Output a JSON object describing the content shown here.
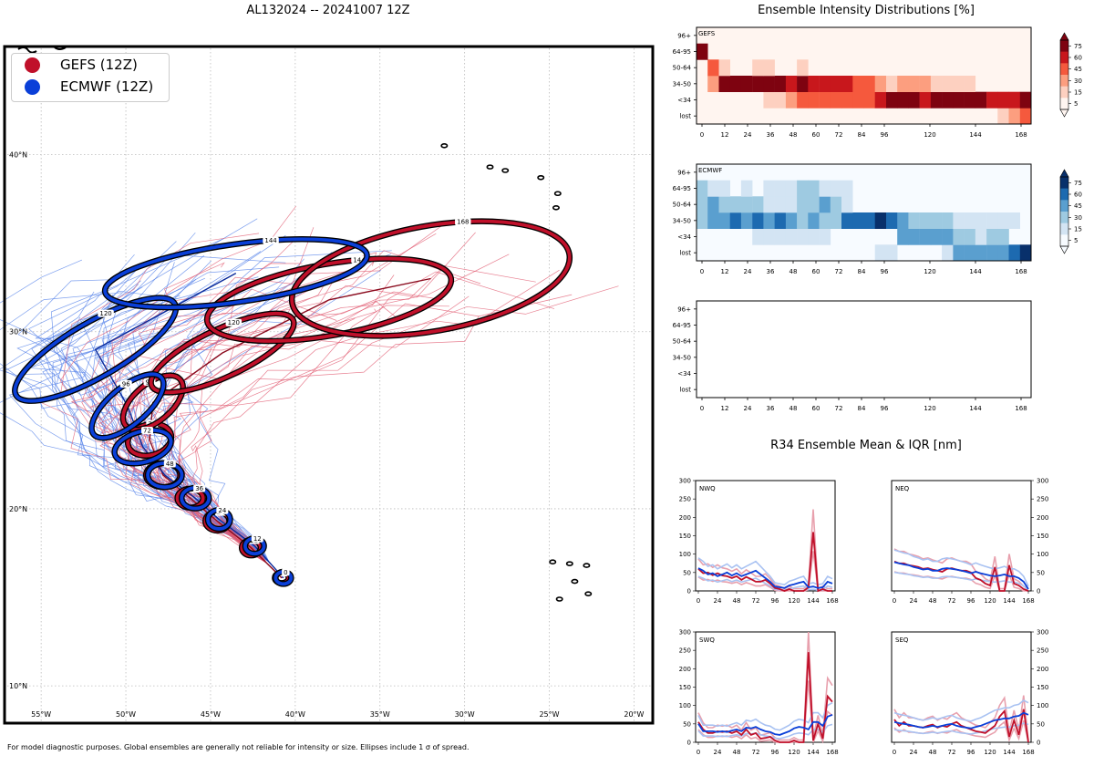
{
  "titles": {
    "map": "AL132024 -- 20241007 12Z",
    "intensity": "Ensemble Intensity Distributions [%]",
    "r34": "R34 Ensemble Mean & IQR [nm]"
  },
  "footnote": "For model diagnostic purposes. Global ensembles are generally not reliable for intensity or size. Ellipses include 1 σ of spread.",
  "colors": {
    "gefs": "#c0102a",
    "ecmwf": "#0a3fd8",
    "gefs_light": "#e8a0ad",
    "ecmwf_light": "#a9c2f2"
  },
  "legend": [
    {
      "label": "GEFS (12Z)",
      "color": "#c0102a"
    },
    {
      "label": "ECMWF (12Z)",
      "color": "#0a3fd8"
    }
  ],
  "chart_data": [
    {
      "type": "map",
      "title": "AL132024 -- 20241007 12Z",
      "lon_range": [
        -57,
        -19
      ],
      "lat_range": [
        8,
        46
      ],
      "lon_ticks": [
        "55°W",
        "50°W",
        "45°W",
        "40°W",
        "35°W",
        "30°W",
        "25°W",
        "20°W"
      ],
      "lat_ticks": [
        "10°N",
        "20°N",
        "30°N",
        "40°N"
      ],
      "gefs_ellipses": [
        {
          "hour": "0",
          "lon": -40.8,
          "lat": 16.1,
          "a": 0.3,
          "b": 0.2,
          "rot": 0
        },
        {
          "hour": "12",
          "lon": -42.6,
          "lat": 17.8,
          "a": 0.45,
          "b": 0.35,
          "rot": 0
        },
        {
          "hour": "24",
          "lon": -44.6,
          "lat": 19.3,
          "a": 0.6,
          "b": 0.45,
          "rot": 0
        },
        {
          "hour": "36",
          "lon": -46.2,
          "lat": 20.6,
          "a": 0.65,
          "b": 0.45,
          "rot": 0
        },
        {
          "hour": "48",
          "lon": -47.8,
          "lat": 21.9,
          "a": 0.9,
          "b": 0.6,
          "rot": 0
        },
        {
          "hour": "72",
          "lon": -48.6,
          "lat": 23.9,
          "a": 1.2,
          "b": 0.8,
          "rot": -15
        },
        {
          "hour": "96",
          "lon": -48.4,
          "lat": 26.0,
          "a": 2.0,
          "b": 1.0,
          "rot": -40
        },
        {
          "hour": "120",
          "lon": -44.3,
          "lat": 28.8,
          "a": 4.5,
          "b": 1.3,
          "rot": -25
        },
        {
          "hour": "144",
          "lon": -38.0,
          "lat": 31.8,
          "a": 7.2,
          "b": 2.0,
          "rot": -10
        },
        {
          "hour": "168",
          "lon": -32.0,
          "lat": 33.0,
          "a": 8.2,
          "b": 3.0,
          "rot": -10
        }
      ],
      "ecmwf_ellipses": [
        {
          "hour": "0",
          "lon": -40.7,
          "lat": 16.1,
          "a": 0.35,
          "b": 0.25,
          "rot": 0
        },
        {
          "hour": "12",
          "lon": -42.4,
          "lat": 17.9,
          "a": 0.45,
          "b": 0.35,
          "rot": 0
        },
        {
          "hour": "24",
          "lon": -44.5,
          "lat": 19.4,
          "a": 0.55,
          "b": 0.45,
          "rot": 0
        },
        {
          "hour": "36",
          "lon": -45.9,
          "lat": 20.6,
          "a": 0.7,
          "b": 0.5,
          "rot": 0
        },
        {
          "hour": "48",
          "lon": -47.7,
          "lat": 21.9,
          "a": 0.9,
          "b": 0.6,
          "rot": 0
        },
        {
          "hour": "72",
          "lon": -49.0,
          "lat": 23.5,
          "a": 1.6,
          "b": 0.8,
          "rot": -15
        },
        {
          "hour": "96",
          "lon": -49.9,
          "lat": 25.8,
          "a": 2.5,
          "b": 1.0,
          "rot": -40
        },
        {
          "hour": "120",
          "lon": -51.8,
          "lat": 29.0,
          "a": 5.3,
          "b": 1.5,
          "rot": -30
        },
        {
          "hour": "144",
          "lon": -43.5,
          "lat": 33.3,
          "a": 7.7,
          "b": 1.6,
          "rot": -8
        }
      ],
      "gefs_mean_track": {
        "lon": [
          -40.8,
          -42.6,
          -44.6,
          -46.2,
          -47.8,
          -48.6,
          -48.4,
          -44.3,
          -38.0,
          -32.0
        ],
        "lat": [
          16.1,
          17.8,
          19.3,
          20.6,
          21.9,
          23.9,
          26.0,
          28.8,
          31.8,
          33.0
        ]
      },
      "ecmwf_mean_track": {
        "lon": [
          -40.7,
          -42.4,
          -44.5,
          -45.9,
          -47.7,
          -49.0,
          -49.9,
          -51.8,
          -43.5
        ],
        "lat": [
          16.1,
          17.9,
          19.4,
          20.6,
          21.9,
          23.5,
          25.8,
          29.0,
          33.3
        ]
      }
    },
    {
      "type": "heatmap",
      "name": "GEFS",
      "x": [
        0,
        6,
        12,
        18,
        24,
        30,
        36,
        42,
        48,
        54,
        60,
        66,
        72,
        78,
        84,
        90,
        96,
        102,
        108,
        114,
        120,
        126,
        132,
        138,
        144,
        150,
        156,
        162,
        168,
        174
      ],
      "xticks": [
        0,
        12,
        24,
        36,
        48,
        60,
        72,
        84,
        96,
        120,
        144,
        168
      ],
      "y_labels": [
        "lost",
        "<34",
        "34-50",
        "50-64",
        "64-95",
        "96+"
      ],
      "colorbar_ticks": [
        5,
        15,
        30,
        45,
        60,
        75
      ],
      "values": [
        [
          0,
          0,
          0,
          0,
          0,
          0,
          0,
          0,
          0,
          0,
          0,
          0,
          0,
          0,
          0,
          0,
          0,
          0,
          0,
          0,
          0,
          0,
          0,
          0,
          0,
          0,
          0,
          10,
          30,
          40
        ],
        [
          0,
          0,
          0,
          0,
          0,
          0,
          15,
          15,
          30,
          45,
          45,
          45,
          45,
          45,
          45,
          45,
          60,
          75,
          75,
          75,
          60,
          75,
          75,
          75,
          75,
          75,
          60,
          60,
          60,
          75
        ],
        [
          0,
          30,
          75,
          75,
          75,
          75,
          75,
          75,
          60,
          75,
          60,
          60,
          60,
          60,
          45,
          45,
          30,
          15,
          30,
          30,
          30,
          15,
          15,
          15,
          15,
          0,
          0,
          0,
          0,
          0
        ],
        [
          0,
          45,
          15,
          0,
          0,
          15,
          15,
          0,
          0,
          15,
          0,
          0,
          0,
          0,
          0,
          0,
          0,
          0,
          0,
          0,
          0,
          0,
          0,
          0,
          0,
          0,
          0,
          0,
          0,
          0
        ],
        [
          75,
          0,
          0,
          0,
          0,
          0,
          0,
          0,
          0,
          0,
          0,
          0,
          0,
          0,
          0,
          0,
          0,
          0,
          0,
          0,
          0,
          0,
          0,
          0,
          0,
          0,
          0,
          0,
          0,
          0
        ],
        [
          0,
          0,
          0,
          0,
          0,
          0,
          0,
          0,
          0,
          0,
          0,
          0,
          0,
          0,
          0,
          0,
          0,
          0,
          0,
          0,
          0,
          0,
          0,
          0,
          0,
          0,
          0,
          0,
          0,
          0
        ]
      ]
    },
    {
      "type": "heatmap",
      "name": "ECMWF",
      "x": [
        0,
        6,
        12,
        18,
        24,
        30,
        36,
        42,
        48,
        54,
        60,
        66,
        72,
        78,
        84,
        90,
        96,
        102,
        108,
        114,
        120,
        126,
        132,
        138,
        144,
        150,
        156,
        162,
        168,
        174
      ],
      "xticks": [
        0,
        12,
        24,
        36,
        48,
        60,
        72,
        84,
        96,
        120,
        144,
        168
      ],
      "y_labels": [
        "lost",
        "<34",
        "34-50",
        "50-64",
        "64-95",
        "96+"
      ],
      "colorbar_ticks": [
        5,
        15,
        30,
        45,
        60,
        75
      ],
      "values": [
        [
          0,
          0,
          0,
          0,
          0,
          0,
          0,
          0,
          0,
          0,
          0,
          0,
          0,
          0,
          0,
          0,
          15,
          15,
          0,
          0,
          0,
          0,
          15,
          45,
          45,
          45,
          45,
          45,
          60,
          75
        ],
        [
          0,
          0,
          0,
          0,
          0,
          15,
          15,
          15,
          15,
          15,
          15,
          15,
          0,
          0,
          0,
          0,
          0,
          0,
          45,
          45,
          45,
          45,
          45,
          30,
          30,
          15,
          30,
          30,
          0,
          0
        ],
        [
          30,
          45,
          45,
          60,
          45,
          60,
          45,
          60,
          45,
          30,
          45,
          30,
          30,
          60,
          60,
          60,
          75,
          60,
          45,
          30,
          30,
          30,
          30,
          15,
          15,
          15,
          15,
          15,
          15,
          0
        ],
        [
          30,
          45,
          30,
          30,
          30,
          30,
          15,
          15,
          15,
          30,
          30,
          45,
          30,
          15,
          0,
          0,
          0,
          0,
          0,
          0,
          0,
          0,
          0,
          0,
          0,
          0,
          0,
          0,
          0,
          0
        ],
        [
          30,
          15,
          15,
          0,
          15,
          0,
          15,
          15,
          15,
          30,
          30,
          15,
          15,
          15,
          0,
          0,
          0,
          0,
          0,
          0,
          0,
          0,
          0,
          0,
          0,
          0,
          0,
          0,
          0,
          0
        ],
        [
          0,
          0,
          0,
          0,
          0,
          0,
          0,
          0,
          0,
          0,
          0,
          0,
          0,
          0,
          0,
          0,
          0,
          0,
          0,
          0,
          0,
          0,
          0,
          0,
          0,
          0,
          0,
          0,
          0,
          0
        ]
      ]
    },
    {
      "type": "heatmap",
      "name": "",
      "xticks": [
        0,
        12,
        24,
        36,
        48,
        60,
        72,
        84,
        96,
        120,
        144,
        168
      ],
      "y_labels": [
        "lost",
        "<34",
        "34-50",
        "50-64",
        "64-95",
        "96+"
      ],
      "values": []
    },
    {
      "type": "line",
      "name": "NWQ",
      "x": [
        0,
        6,
        12,
        18,
        24,
        30,
        36,
        42,
        48,
        54,
        60,
        66,
        72,
        78,
        84,
        90,
        96,
        102,
        108,
        114,
        120,
        126,
        132,
        138,
        144,
        150,
        156,
        162,
        168
      ],
      "xticks": [
        0,
        24,
        48,
        72,
        96,
        120,
        144,
        168
      ],
      "ylim": [
        0,
        300
      ],
      "yticks": [
        0,
        50,
        100,
        150,
        200,
        250,
        300
      ],
      "series": [
        {
          "name": "GEFS mean",
          "values": [
            60,
            48,
            50,
            43,
            48,
            42,
            40,
            35,
            40,
            30,
            38,
            32,
            25,
            25,
            30,
            20,
            8,
            5,
            0,
            5,
            0,
            0,
            0,
            10,
            160,
            0,
            5,
            0,
            0
          ]
        },
        {
          "name": "ECMWF mean",
          "values": [
            62,
            55,
            45,
            48,
            40,
            45,
            50,
            42,
            48,
            40,
            45,
            50,
            55,
            45,
            35,
            25,
            12,
            10,
            8,
            15,
            18,
            22,
            25,
            10,
            12,
            8,
            10,
            25,
            20
          ]
        }
      ]
    },
    {
      "type": "line",
      "name": "NEQ",
      "x": [
        0,
        6,
        12,
        18,
        24,
        30,
        36,
        42,
        48,
        54,
        60,
        66,
        72,
        78,
        84,
        90,
        96,
        102,
        108,
        114,
        120,
        126,
        132,
        138,
        144,
        150,
        156,
        162,
        168
      ],
      "xticks": [
        0,
        24,
        48,
        72,
        96,
        120,
        144,
        168
      ],
      "ylim": [
        0,
        300
      ],
      "yticks": [
        0,
        50,
        100,
        150,
        200,
        250,
        300
      ],
      "series": [
        {
          "name": "GEFS mean",
          "values": [
            80,
            75,
            75,
            70,
            68,
            65,
            60,
            62,
            58,
            55,
            52,
            60,
            62,
            58,
            55,
            55,
            50,
            35,
            30,
            20,
            15,
            65,
            0,
            0,
            70,
            20,
            15,
            5,
            0
          ]
        },
        {
          "name": "ECMWF mean",
          "values": [
            78,
            75,
            72,
            70,
            65,
            62,
            58,
            60,
            55,
            55,
            60,
            62,
            60,
            58,
            55,
            52,
            48,
            52,
            48,
            45,
            42,
            40,
            42,
            45,
            40,
            40,
            35,
            25,
            5
          ]
        }
      ]
    },
    {
      "type": "line",
      "name": "SWQ",
      "x": [
        0,
        6,
        12,
        18,
        24,
        30,
        36,
        42,
        48,
        54,
        60,
        66,
        72,
        78,
        84,
        90,
        96,
        102,
        108,
        114,
        120,
        126,
        132,
        138,
        144,
        150,
        156,
        162,
        168
      ],
      "xticks": [
        0,
        24,
        48,
        72,
        96,
        120,
        144,
        168
      ],
      "ylim": [
        0,
        300
      ],
      "yticks": [
        0,
        50,
        100,
        150,
        200,
        250,
        300
      ],
      "series": [
        {
          "name": "GEFS mean",
          "values": [
            55,
            35,
            25,
            25,
            30,
            28,
            30,
            25,
            30,
            20,
            35,
            20,
            25,
            10,
            12,
            15,
            5,
            0,
            0,
            0,
            5,
            0,
            0,
            245,
            5,
            50,
            10,
            125,
            110
          ]
        },
        {
          "name": "ECMWF mean",
          "values": [
            50,
            30,
            30,
            30,
            28,
            30,
            28,
            32,
            35,
            30,
            40,
            38,
            42,
            35,
            30,
            28,
            22,
            20,
            25,
            30,
            38,
            42,
            40,
            35,
            55,
            55,
            45,
            70,
            75
          ]
        }
      ]
    },
    {
      "type": "line",
      "name": "SEQ",
      "x": [
        0,
        6,
        12,
        18,
        24,
        30,
        36,
        42,
        48,
        54,
        60,
        66,
        72,
        78,
        84,
        90,
        96,
        102,
        108,
        114,
        120,
        126,
        132,
        138,
        144,
        150,
        156,
        162,
        168
      ],
      "xticks": [
        0,
        24,
        48,
        72,
        96,
        120,
        144,
        168
      ],
      "ylim": [
        0,
        300
      ],
      "yticks": [
        0,
        50,
        100,
        150,
        200,
        250,
        300
      ],
      "series": [
        {
          "name": "GEFS mean",
          "values": [
            62,
            45,
            55,
            45,
            45,
            42,
            40,
            45,
            48,
            40,
            45,
            42,
            50,
            55,
            45,
            40,
            35,
            30,
            28,
            25,
            35,
            45,
            70,
            85,
            15,
            60,
            20,
            90,
            0
          ]
        },
        {
          "name": "ECMWF mean",
          "values": [
            55,
            52,
            50,
            48,
            45,
            42,
            40,
            42,
            45,
            42,
            45,
            48,
            50,
            45,
            42,
            40,
            38,
            42,
            45,
            50,
            55,
            60,
            62,
            65,
            65,
            70,
            72,
            80,
            75
          ]
        }
      ]
    }
  ]
}
